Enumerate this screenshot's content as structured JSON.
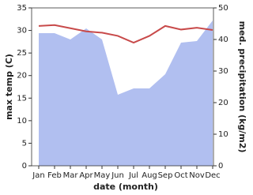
{
  "chart_data": {
    "type": "area-line",
    "xlabel": "date (month)",
    "ylabel": "max temp (C)",
    "y2label": "med. precipitation (kg/m2)",
    "categories": [
      "Jan",
      "Feb",
      "Mar",
      "Apr",
      "May",
      "Jun",
      "Jul",
      "Aug",
      "Sep",
      "Oct",
      "Nov",
      "Dec"
    ],
    "series": [
      {
        "name": "med. precipitation",
        "axis": "y2",
        "kind": "area",
        "color": "#b1bff0",
        "values": [
          42,
          42,
          40,
          43.5,
          40,
          22.5,
          24.5,
          24.5,
          29,
          39,
          39.5,
          46
        ]
      },
      {
        "name": "max temp",
        "axis": "y",
        "kind": "line",
        "color": "#c84a4a",
        "values": [
          31,
          31.2,
          30.5,
          29.8,
          29.5,
          28.8,
          27.3,
          28.8,
          31,
          30.2,
          30.6,
          30.1
        ]
      }
    ],
    "ylim": [
      0,
      35
    ],
    "yticks": [
      0,
      5,
      10,
      15,
      20,
      25,
      30,
      35
    ],
    "y2lim": [
      0,
      50
    ],
    "y2ticks": [
      0,
      10,
      20,
      30,
      40,
      50
    ]
  }
}
